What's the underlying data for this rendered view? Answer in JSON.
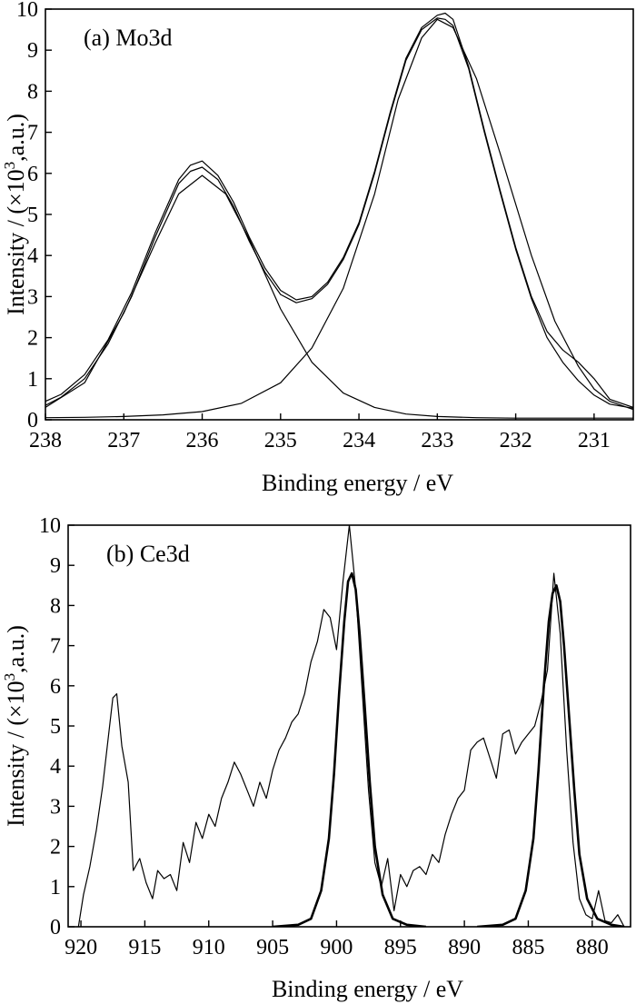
{
  "chart_data": [
    {
      "panel": "a",
      "type": "line",
      "annotation": "(a) Mo3d",
      "xlabel": "Binding energy / eV",
      "ylabel_main": "Intensity / (×10",
      "ylabel_sup": "3",
      "ylabel_tail": ",a.u.)",
      "xlim": [
        238,
        230.5
      ],
      "ylim": [
        0,
        10
      ],
      "xticks": [
        238,
        237,
        236,
        235,
        234,
        233,
        232,
        231
      ],
      "yticks": [
        0,
        1,
        2,
        3,
        4,
        5,
        6,
        7,
        8,
        9,
        10
      ],
      "series": [
        {
          "role": "measured",
          "stroke": "#000000",
          "x": [
            238,
            237.8,
            237.5,
            237.2,
            236.9,
            236.6,
            236.3,
            236.15,
            236.0,
            235.8,
            235.6,
            235.4,
            235.2,
            235.0,
            234.8,
            234.6,
            234.4,
            234.2,
            234.0,
            233.8,
            233.6,
            233.4,
            233.2,
            233.0,
            232.9,
            232.8,
            232.6,
            232.4,
            232.2,
            232.0,
            231.8,
            231.6,
            231.4,
            231.2,
            231.0,
            230.8,
            230.5
          ],
          "y": [
            0.45,
            0.62,
            1.1,
            1.95,
            3.1,
            4.55,
            5.85,
            6.2,
            6.3,
            5.95,
            5.3,
            4.45,
            3.7,
            3.15,
            2.92,
            3.0,
            3.35,
            3.95,
            4.8,
            6.05,
            7.5,
            8.8,
            9.55,
            9.85,
            9.9,
            9.75,
            8.6,
            7.05,
            5.6,
            4.2,
            3.0,
            2.15,
            1.7,
            1.4,
            1.0,
            0.5,
            0.3
          ]
        },
        {
          "role": "envelope-fit",
          "stroke": "#000000",
          "x": [
            238,
            237.8,
            237.5,
            237.2,
            236.9,
            236.6,
            236.3,
            236.15,
            236.0,
            235.8,
            235.6,
            235.4,
            235.2,
            235.0,
            234.8,
            234.6,
            234.4,
            234.2,
            234.0,
            233.8,
            233.6,
            233.4,
            233.2,
            233.0,
            232.9,
            232.8,
            232.6,
            232.4,
            232.2,
            232.0,
            231.8,
            231.6,
            231.4,
            231.2,
            231.0,
            230.8,
            230.5
          ],
          "y": [
            0.35,
            0.55,
            1.0,
            1.85,
            3.0,
            4.45,
            5.75,
            6.05,
            6.15,
            5.85,
            5.2,
            4.35,
            3.6,
            3.05,
            2.85,
            2.95,
            3.3,
            3.9,
            4.75,
            6.0,
            7.45,
            8.75,
            9.5,
            9.78,
            9.75,
            9.6,
            8.55,
            7.0,
            5.55,
            4.15,
            2.95,
            2.0,
            1.4,
            0.95,
            0.6,
            0.38,
            0.28
          ]
        },
        {
          "role": "Mo3d3/2-component",
          "stroke": "#000000",
          "x": [
            238,
            237.5,
            237.0,
            236.6,
            236.3,
            236.0,
            235.7,
            235.4,
            235.0,
            234.6,
            234.2,
            233.8,
            233.4,
            233.0,
            232.5,
            232.0,
            231.5,
            231.0,
            230.5
          ],
          "y": [
            0.3,
            0.9,
            2.6,
            4.3,
            5.5,
            5.95,
            5.5,
            4.4,
            2.7,
            1.4,
            0.65,
            0.3,
            0.14,
            0.08,
            0.05,
            0.04,
            0.04,
            0.04,
            0.04
          ]
        },
        {
          "role": "Mo3d5/2-component",
          "stroke": "#000000",
          "x": [
            238,
            237.5,
            237.0,
            236.5,
            236.0,
            235.5,
            235.0,
            234.6,
            234.2,
            233.8,
            233.5,
            233.2,
            233.0,
            232.8,
            232.5,
            232.2,
            231.8,
            231.5,
            231.2,
            231.0,
            230.8,
            230.5
          ],
          "y": [
            0.05,
            0.06,
            0.08,
            0.12,
            0.2,
            0.4,
            0.9,
            1.75,
            3.2,
            5.5,
            7.8,
            9.3,
            9.75,
            9.55,
            8.3,
            6.5,
            4.0,
            2.4,
            1.3,
            0.75,
            0.45,
            0.25
          ]
        }
      ]
    },
    {
      "panel": "b",
      "type": "line",
      "annotation": "(b) Ce3d",
      "xlabel": "Binding energy / eV",
      "ylabel_main": "Intensity / (×10",
      "ylabel_sup": "3",
      "ylabel_tail": ",a.u.)",
      "xlim": [
        921,
        877
      ],
      "ylim": [
        0,
        10
      ],
      "xticks": [
        920,
        915,
        910,
        905,
        900,
        895,
        890,
        885,
        880
      ],
      "yticks": [
        0,
        1,
        2,
        3,
        4,
        5,
        6,
        7,
        8,
        9,
        10
      ],
      "series": [
        {
          "role": "measured",
          "stroke": "#000000",
          "x": [
            920.2,
            919.8,
            919.3,
            918.8,
            918.3,
            917.9,
            917.5,
            917.2,
            916.8,
            916.3,
            915.9,
            915.4,
            914.9,
            914.4,
            914.0,
            913.5,
            913.0,
            912.5,
            912.0,
            911.5,
            911.0,
            910.5,
            910.0,
            909.5,
            909.0,
            908.5,
            908.0,
            907.5,
            907.0,
            906.5,
            906.0,
            905.5,
            905.0,
            904.5,
            904.0,
            903.5,
            903.0,
            902.5,
            902.0,
            901.5,
            901.0,
            900.5,
            900.0,
            899.5,
            899.0,
            898.5,
            898.0,
            897.5,
            897.0,
            896.5,
            896.0,
            895.5,
            895.0,
            894.5,
            894.0,
            893.5,
            893.0,
            892.5,
            892.0,
            891.5,
            891.0,
            890.5,
            890.0,
            889.5,
            889.0,
            888.5,
            888.0,
            887.5,
            887.0,
            886.5,
            886.0,
            885.5,
            885.0,
            884.5,
            884.0,
            883.5,
            883.0,
            882.5,
            882.0,
            881.5,
            881.0,
            880.5,
            880.0,
            879.5,
            879.0,
            878.5,
            878.0,
            877.5
          ],
          "y": [
            0.0,
            0.8,
            1.5,
            2.4,
            3.5,
            4.6,
            5.7,
            5.8,
            4.5,
            3.6,
            1.4,
            1.7,
            1.1,
            0.7,
            1.4,
            1.2,
            1.3,
            0.9,
            2.1,
            1.6,
            2.6,
            2.2,
            2.8,
            2.5,
            3.2,
            3.6,
            4.1,
            3.8,
            3.4,
            3.0,
            3.6,
            3.2,
            3.9,
            4.4,
            4.7,
            5.1,
            5.3,
            5.8,
            6.6,
            7.1,
            7.9,
            7.7,
            6.9,
            8.6,
            10.0,
            8.4,
            5.9,
            3.4,
            1.6,
            1.0,
            1.7,
            0.4,
            1.3,
            1.0,
            1.4,
            1.5,
            1.3,
            1.8,
            1.6,
            2.3,
            2.8,
            3.2,
            3.4,
            4.4,
            4.6,
            4.7,
            4.2,
            3.7,
            4.8,
            4.9,
            4.3,
            4.6,
            4.8,
            5.0,
            5.6,
            6.4,
            8.8,
            7.3,
            4.4,
            2.1,
            0.7,
            0.3,
            0.2,
            0.9,
            0.15,
            0.1,
            0.3,
            0.0
          ]
        },
        {
          "role": "fit-peak-899",
          "stroke": "#000000",
          "x": [
            905,
            903,
            902,
            901.2,
            900.6,
            900.2,
            899.8,
            899.4,
            899.1,
            898.8,
            898.5,
            898.2,
            897.8,
            897.4,
            897.0,
            896.4,
            895.6,
            894.5,
            893
          ],
          "y": [
            0,
            0.05,
            0.2,
            0.9,
            2.2,
            3.8,
            5.8,
            7.6,
            8.6,
            8.8,
            8.4,
            7.3,
            5.5,
            3.6,
            2.0,
            0.8,
            0.2,
            0.05,
            0
          ]
        },
        {
          "role": "fit-peak-883",
          "stroke": "#000000",
          "x": [
            889,
            887,
            886,
            885.2,
            884.6,
            884.2,
            883.8,
            883.4,
            883.1,
            882.8,
            882.5,
            882.2,
            881.8,
            881.4,
            881.0,
            880.4,
            879.6,
            878.5,
            877.5
          ],
          "y": [
            0,
            0.05,
            0.2,
            0.9,
            2.2,
            3.9,
            5.9,
            7.6,
            8.3,
            8.5,
            8.1,
            7.0,
            5.2,
            3.4,
            1.8,
            0.7,
            0.2,
            0.05,
            0
          ]
        }
      ]
    }
  ]
}
